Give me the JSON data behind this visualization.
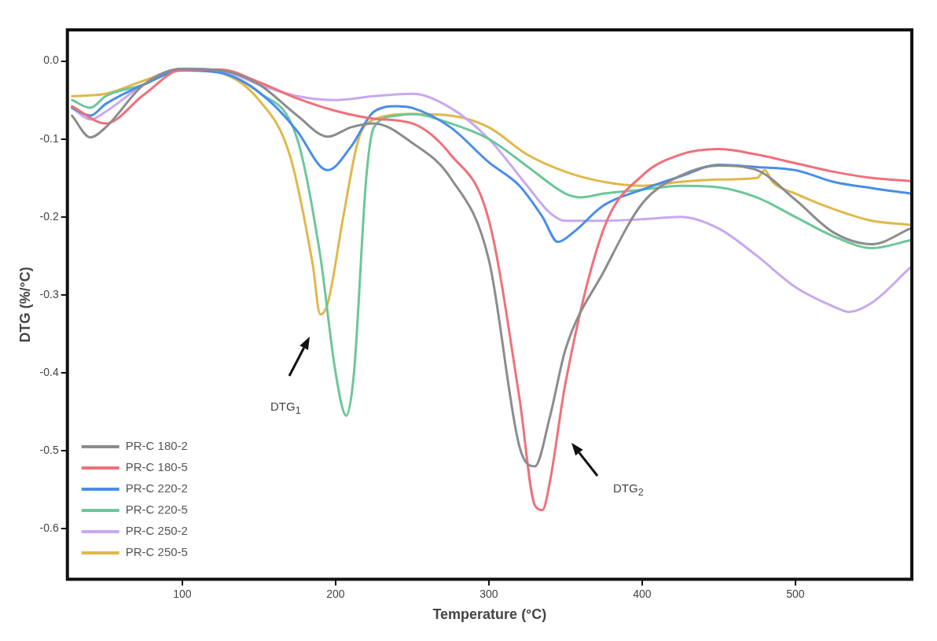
{
  "chart_data": {
    "type": "line",
    "xlabel": "Temperature (°C)",
    "ylabel": "DTG (%/°C)",
    "xlim": [
      25,
      576
    ],
    "xticks": [
      100,
      200,
      300,
      400,
      500
    ],
    "ylim": [
      -0.665,
      0.04
    ],
    "yticks": [
      {
        "value": 0,
        "label": "0.0"
      },
      -0.1,
      -0.2,
      -0.3,
      -0.4,
      -0.5,
      -0.6
    ],
    "grid": false,
    "legend": "bottom left",
    "marker": "none",
    "line_style": "solid",
    "annotations": [
      "DTG$_{1}$",
      "DTG$_{2}$"
    ],
    "series": [
      {
        "name": "PR-C 180-2",
        "color": "#8c8c8c",
        "x": [
          28,
          40,
          50,
          75,
          100,
          125,
          150,
          175,
          195,
          210,
          225,
          250,
          275,
          300,
          320,
          330,
          340,
          350,
          375,
          400,
          425,
          450,
          475,
          500,
          525,
          550,
          575
        ],
        "values": [
          -0.07,
          -0.098,
          -0.085,
          -0.03,
          -0.01,
          -0.012,
          -0.03,
          -0.07,
          -0.097,
          -0.085,
          -0.08,
          -0.105,
          -0.15,
          -0.255,
          -0.495,
          -0.52,
          -0.455,
          -0.37,
          -0.27,
          -0.183,
          -0.147,
          -0.134,
          -0.14,
          -0.178,
          -0.22,
          -0.235,
          -0.215
        ]
      },
      {
        "name": "PR-C 180-5",
        "color": "#f0707a",
        "x": [
          28,
          50,
          75,
          100,
          125,
          150,
          175,
          200,
          225,
          250,
          275,
          300,
          320,
          330,
          335,
          340,
          350,
          375,
          400,
          425,
          450,
          475,
          500,
          525,
          550,
          575
        ],
        "values": [
          -0.058,
          -0.08,
          -0.043,
          -0.011,
          -0.011,
          -0.027,
          -0.048,
          -0.064,
          -0.074,
          -0.08,
          -0.12,
          -0.204,
          -0.433,
          -0.57,
          -0.576,
          -0.538,
          -0.413,
          -0.215,
          -0.147,
          -0.12,
          -0.113,
          -0.12,
          -0.131,
          -0.142,
          -0.15,
          -0.154
        ]
      },
      {
        "name": "PR-C 220-2",
        "color": "#4a8de8",
        "x": [
          28,
          40,
          50,
          75,
          100,
          125,
          150,
          175,
          190,
          195,
          210,
          225,
          240,
          250,
          275,
          300,
          320,
          335,
          345,
          355,
          375,
          400,
          425,
          450,
          475,
          500,
          525,
          550,
          575
        ],
        "values": [
          -0.06,
          -0.07,
          -0.055,
          -0.03,
          -0.012,
          -0.015,
          -0.04,
          -0.09,
          -0.135,
          -0.14,
          -0.11,
          -0.065,
          -0.058,
          -0.06,
          -0.085,
          -0.13,
          -0.16,
          -0.2,
          -0.232,
          -0.22,
          -0.185,
          -0.165,
          -0.148,
          -0.133,
          -0.136,
          -0.14,
          -0.155,
          -0.163,
          -0.17
        ]
      },
      {
        "name": "PR-C 220-5",
        "color": "#6cc79a",
        "x": [
          28,
          40,
          50,
          75,
          100,
          125,
          150,
          175,
          190,
          200,
          207,
          212,
          220,
          225,
          240,
          250,
          275,
          300,
          325,
          350,
          360,
          375,
          400,
          425,
          450,
          475,
          500,
          525,
          550,
          575
        ],
        "values": [
          -0.05,
          -0.06,
          -0.045,
          -0.03,
          -0.01,
          -0.015,
          -0.04,
          -0.1,
          -0.25,
          -0.4,
          -0.455,
          -0.4,
          -0.15,
          -0.085,
          -0.07,
          -0.068,
          -0.08,
          -0.1,
          -0.135,
          -0.17,
          -0.175,
          -0.17,
          -0.165,
          -0.16,
          -0.162,
          -0.175,
          -0.2,
          -0.225,
          -0.24,
          -0.23
        ]
      },
      {
        "name": "PR-C 250-2",
        "color": "#c8a8f0",
        "x": [
          28,
          40,
          50,
          75,
          100,
          125,
          150,
          175,
          200,
          225,
          250,
          275,
          300,
          325,
          340,
          350,
          375,
          400,
          425,
          450,
          475,
          500,
          525,
          535,
          550,
          575
        ],
        "values": [
          -0.06,
          -0.075,
          -0.065,
          -0.03,
          -0.01,
          -0.012,
          -0.03,
          -0.045,
          -0.05,
          -0.045,
          -0.042,
          -0.06,
          -0.1,
          -0.16,
          -0.195,
          -0.205,
          -0.205,
          -0.203,
          -0.2,
          -0.215,
          -0.25,
          -0.29,
          -0.315,
          -0.322,
          -0.31,
          -0.265
        ]
      },
      {
        "name": "PR-C 250-5",
        "color": "#e0b84a",
        "x": [
          28,
          50,
          75,
          100,
          125,
          150,
          170,
          185,
          190,
          195,
          205,
          215,
          225,
          250,
          275,
          300,
          325,
          350,
          375,
          400,
          425,
          450,
          475,
          480,
          485,
          500,
          525,
          550,
          575
        ],
        "values": [
          -0.045,
          -0.042,
          -0.025,
          -0.01,
          -0.015,
          -0.05,
          -0.12,
          -0.26,
          -0.325,
          -0.31,
          -0.2,
          -0.1,
          -0.075,
          -0.068,
          -0.07,
          -0.085,
          -0.12,
          -0.142,
          -0.155,
          -0.16,
          -0.155,
          -0.152,
          -0.15,
          -0.14,
          -0.155,
          -0.17,
          -0.19,
          -0.205,
          -0.21
        ]
      }
    ]
  }
}
